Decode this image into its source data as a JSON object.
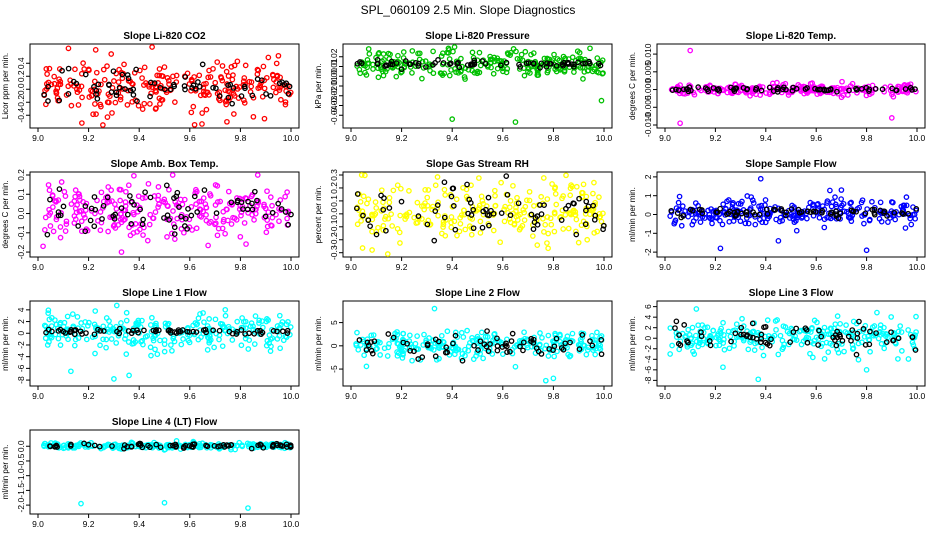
{
  "page_title": "SPL_060109  2.5 Min. Slope Diagnostics",
  "chart_data": [
    {
      "type": "scatter",
      "title": "Slope Li-820 CO2",
      "ylabel": "Licor ppm per min.",
      "color": "#ff0000",
      "xlim": [
        9.0,
        10.0
      ],
      "ylim": [
        -0.55,
        0.65
      ],
      "yticks": [
        -0.4,
        -0.2,
        0.0,
        0.2,
        0.4
      ],
      "ytick_labels": [
        "-0.4",
        "-0.2",
        "0.0",
        "0.2",
        "0.4"
      ],
      "xticks": [
        9.0,
        9.2,
        9.4,
        9.6,
        9.8,
        10.0
      ],
      "xtick_labels": [
        "9.0",
        "9.2",
        "9.4",
        "9.6",
        "9.8",
        "10.0"
      ],
      "spread": 0.2,
      "black_spread": 0.12,
      "center": 0.05,
      "outliers": []
    },
    {
      "type": "scatter",
      "title": "Slope Li-820 Pressure",
      "ylabel": "kPa per min.",
      "color": "#00c000",
      "xlim": [
        9.0,
        10.0
      ],
      "ylim": [
        -0.05,
        0.03
      ],
      "yticks": [
        -0.04,
        -0.03,
        -0.02,
        -0.01,
        0.0,
        0.01,
        0.02
      ],
      "ytick_labels": [
        "-0.04",
        "-0.03",
        "-0.02",
        "-0.01",
        "0.00",
        "0.01",
        "0.02"
      ],
      "xticks": [
        9.0,
        9.2,
        9.4,
        9.6,
        9.8,
        10.0
      ],
      "xtick_labels": [
        "9.0",
        "9.2",
        "9.4",
        "9.6",
        "9.8",
        "10.0"
      ],
      "spread": 0.007,
      "black_spread": 0.002,
      "center": 0.012,
      "outliers": [
        [
          9.4,
          -0.044
        ],
        [
          9.65,
          -0.047
        ],
        [
          9.99,
          -0.025
        ],
        [
          9.07,
          0.028
        ]
      ]
    },
    {
      "type": "scatter",
      "title": "Slope Li-820 Temp.",
      "ylabel": "degrees C per min.",
      "color": "#ff00ff",
      "xlim": [
        9.0,
        10.0
      ],
      "ylim": [
        -0.01,
        0.012
      ],
      "yticks": [
        -0.01,
        -0.005,
        0.0,
        0.005,
        0.01
      ],
      "ytick_labels": [
        "-0.010",
        "-0.005",
        "0.000",
        "0.005",
        "0.010"
      ],
      "xticks": [
        9.0,
        9.2,
        9.4,
        9.6,
        9.8,
        10.0
      ],
      "xtick_labels": [
        "9.0",
        "9.2",
        "9.4",
        "9.6",
        "9.8",
        "10.0"
      ],
      "spread": 0.0008,
      "black_spread": 0.0003,
      "center": 0.0,
      "outliers": [
        [
          9.06,
          -0.0095
        ],
        [
          9.1,
          0.011
        ],
        [
          9.9,
          -0.008
        ]
      ]
    },
    {
      "type": "scatter",
      "title": "Slope Amb. Box Temp.",
      "ylabel": "degrees C per min.",
      "color": "#ff00ff",
      "xlim": [
        9.0,
        10.0
      ],
      "ylim": [
        -0.21,
        0.2
      ],
      "yticks": [
        -0.2,
        -0.1,
        0.0,
        0.1,
        0.2
      ],
      "ytick_labels": [
        "-0.2",
        "-0.1",
        "0.0",
        "0.1",
        "0.2"
      ],
      "xticks": [
        9.0,
        9.2,
        9.4,
        9.6,
        9.8,
        10.0
      ],
      "xtick_labels": [
        "9.0",
        "9.2",
        "9.4",
        "9.6",
        "9.8",
        "10.0"
      ],
      "spread": 0.07,
      "black_spread": 0.06,
      "center": 0.02,
      "outliers": [
        [
          9.33,
          -0.2
        ],
        [
          9.02,
          -0.17
        ]
      ]
    },
    {
      "type": "scatter",
      "title": "Slope Gas Stream RH",
      "ylabel": "percent per min.",
      "color": "#ffff00",
      "xlim": [
        9.0,
        10.0
      ],
      "ylim": [
        -0.31,
        0.3
      ],
      "yticks": [
        -0.3,
        -0.2,
        -0.1,
        0.0,
        0.1,
        0.2,
        0.3
      ],
      "ytick_labels": [
        "-0.3",
        "-0.2",
        "-0.1",
        "0.0",
        "0.1",
        "0.2",
        "0.3"
      ],
      "xticks": [
        9.0,
        9.2,
        9.4,
        9.6,
        9.8,
        10.0
      ],
      "xtick_labels": [
        "9.0",
        "9.2",
        "9.4",
        "9.6",
        "9.8",
        "10.0"
      ],
      "spread": 0.11,
      "black_spread": 0.1,
      "center": 0.02,
      "outliers": []
    },
    {
      "type": "scatter",
      "title": "Slope Sample Flow",
      "ylabel": "ml/min per min.",
      "color": "#0000ff",
      "xlim": [
        9.0,
        10.0
      ],
      "ylim": [
        -2.1,
        2.1
      ],
      "yticks": [
        -2,
        -1,
        0,
        1,
        2
      ],
      "ytick_labels": [
        "-2",
        "-1",
        "0",
        "1",
        "2"
      ],
      "xticks": [
        9.0,
        9.2,
        9.4,
        9.6,
        9.8,
        10.0
      ],
      "xtick_labels": [
        "9.0",
        "9.2",
        "9.4",
        "9.6",
        "9.8",
        "10.0"
      ],
      "spread": 0.35,
      "black_spread": 0.12,
      "center": 0.1,
      "outliers": [
        [
          9.38,
          1.9
        ],
        [
          9.22,
          -1.8
        ],
        [
          9.45,
          -1.4
        ],
        [
          9.8,
          -1.9
        ],
        [
          9.7,
          1.3
        ]
      ]
    },
    {
      "type": "scatter",
      "title": "Slope Line 1 Flow",
      "ylabel": "ml/min per min.",
      "color": "#00ffff",
      "xlim": [
        9.0,
        10.0
      ],
      "ylim": [
        -8.5,
        5
      ],
      "yticks": [
        -8,
        -6,
        -4,
        -2,
        0,
        2,
        4
      ],
      "ytick_labels": [
        "-8",
        "-6",
        "-4",
        "-2",
        "0",
        "2",
        "4"
      ],
      "xticks": [
        9.0,
        9.2,
        9.4,
        9.6,
        9.8,
        10.0
      ],
      "xtick_labels": [
        "9.0",
        "9.2",
        "9.4",
        "9.6",
        "9.8",
        "10.0"
      ],
      "spread": 1.6,
      "black_spread": 0.25,
      "center": 0.3,
      "outliers": [
        [
          9.3,
          -7.8
        ],
        [
          9.13,
          -6.5
        ],
        [
          9.36,
          -7.2
        ]
      ]
    },
    {
      "type": "scatter",
      "title": "Slope Line 2 Flow",
      "ylabel": "ml/min per min.",
      "color": "#00ffff",
      "xlim": [
        9.0,
        10.0
      ],
      "ylim": [
        -8,
        9
      ],
      "yticks": [
        -5,
        0,
        5
      ],
      "ytick_labels": [
        "-5",
        "0",
        "5"
      ],
      "xticks": [
        9.0,
        9.2,
        9.4,
        9.6,
        9.8,
        10.0
      ],
      "xtick_labels": [
        "9.0",
        "9.2",
        "9.4",
        "9.6",
        "9.8",
        "10.0"
      ],
      "spread": 1.5,
      "black_spread": 1.5,
      "center": 0.0,
      "outliers": [
        [
          9.8,
          -7.0
        ],
        [
          9.33,
          8.0
        ],
        [
          9.65,
          -4.5
        ],
        [
          9.77,
          -7.5
        ]
      ]
    },
    {
      "type": "scatter",
      "title": "Slope Line 3 Flow",
      "ylabel": "ml/min per min.",
      "color": "#00ffff",
      "xlim": [
        9.0,
        10.0
      ],
      "ylim": [
        -8.5,
        6.5
      ],
      "yticks": [
        -8,
        -6,
        -4,
        -2,
        0,
        2,
        4,
        6
      ],
      "ytick_labels": [
        "-8",
        "-6",
        "-4",
        "-2",
        "0",
        "2",
        "4",
        "6"
      ],
      "xticks": [
        9.0,
        9.2,
        9.4,
        9.6,
        9.8,
        10.0
      ],
      "xtick_labels": [
        "9.0",
        "9.2",
        "9.4",
        "9.6",
        "9.8",
        "10.0"
      ],
      "spread": 1.6,
      "black_spread": 1.2,
      "center": 0.3,
      "outliers": [
        [
          9.8,
          -6.0
        ],
        [
          9.23,
          -5.5
        ],
        [
          9.37,
          -7.8
        ]
      ]
    },
    {
      "type": "scatter",
      "title": "Slope Line 4 (LT) Flow",
      "ylabel": "ml/min per min.",
      "color": "#00ffff",
      "xlim": [
        9.0,
        10.0
      ],
      "ylim": [
        -2.2,
        0.45
      ],
      "yticks": [
        -2.0,
        -1.5,
        -1.0,
        -0.5,
        0.0
      ],
      "ytick_labels": [
        "-2.0",
        "-1.5",
        "-1.0",
        "-0.5",
        "0.0"
      ],
      "xticks": [
        9.0,
        9.2,
        9.4,
        9.6,
        9.8,
        10.0
      ],
      "xtick_labels": [
        "9.0",
        "9.2",
        "9.4",
        "9.6",
        "9.8",
        "10.0"
      ],
      "spread": 0.05,
      "black_spread": 0.04,
      "center": 0.02,
      "outliers": [
        [
          9.17,
          -1.95
        ],
        [
          9.5,
          -1.92
        ],
        [
          9.83,
          -2.1
        ]
      ]
    }
  ]
}
